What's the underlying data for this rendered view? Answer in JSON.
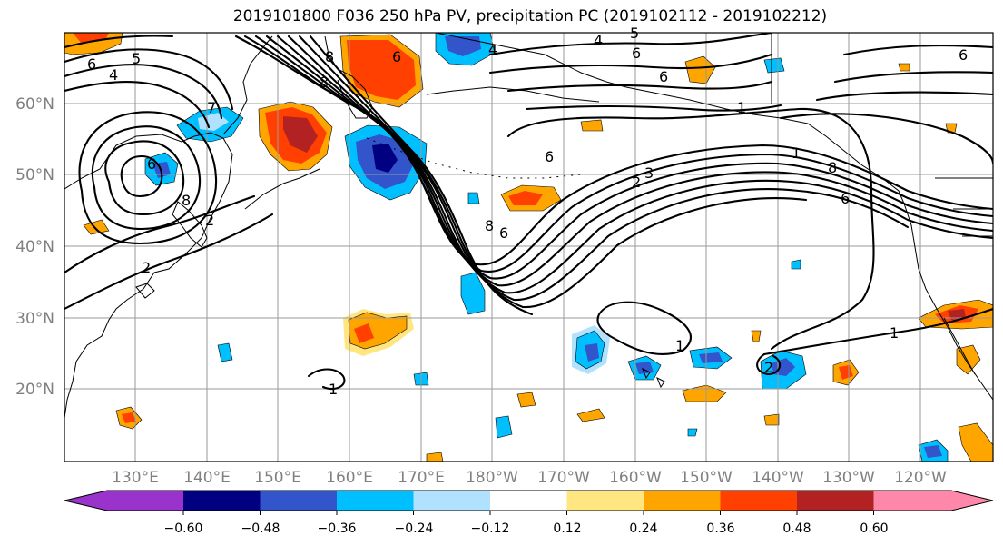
{
  "title": "2019101800 F036 250 hPa PV, precipitation PC (2019102112 - 2019102212)",
  "lat_labels": [
    "60°N",
    "50°N",
    "40°N",
    "30°N",
    "20°N"
  ],
  "lon_labels": [
    "130°E",
    "140°E",
    "150°E",
    "160°E",
    "170°E",
    "180°W",
    "170°W",
    "160°W",
    "150°W",
    "140°W",
    "130°W",
    "120°W"
  ],
  "colorbar": {
    "ticks": [
      "−0.60",
      "−0.48",
      "−0.36",
      "−0.24",
      "−0.12",
      "0.12",
      "0.24",
      "0.36",
      "0.48",
      "0.60"
    ],
    "colors": [
      "#9933cc",
      "#000080",
      "#3355cc",
      "#00bfff",
      "#b0e2ff",
      "#ffffff",
      "#ffe680",
      "#ffa500",
      "#ff4000",
      "#b22222",
      "#ff88aa"
    ]
  },
  "contour_labels": [
    "6",
    "4",
    "2",
    "6",
    "2",
    "1",
    "6",
    "8",
    "8",
    "4",
    "5",
    "6",
    "4",
    "5",
    "6",
    "6",
    "7",
    "8",
    "6",
    "2",
    "3",
    "8",
    "6",
    "8",
    "1",
    "1",
    "1",
    "1",
    "2",
    "6"
  ]
}
